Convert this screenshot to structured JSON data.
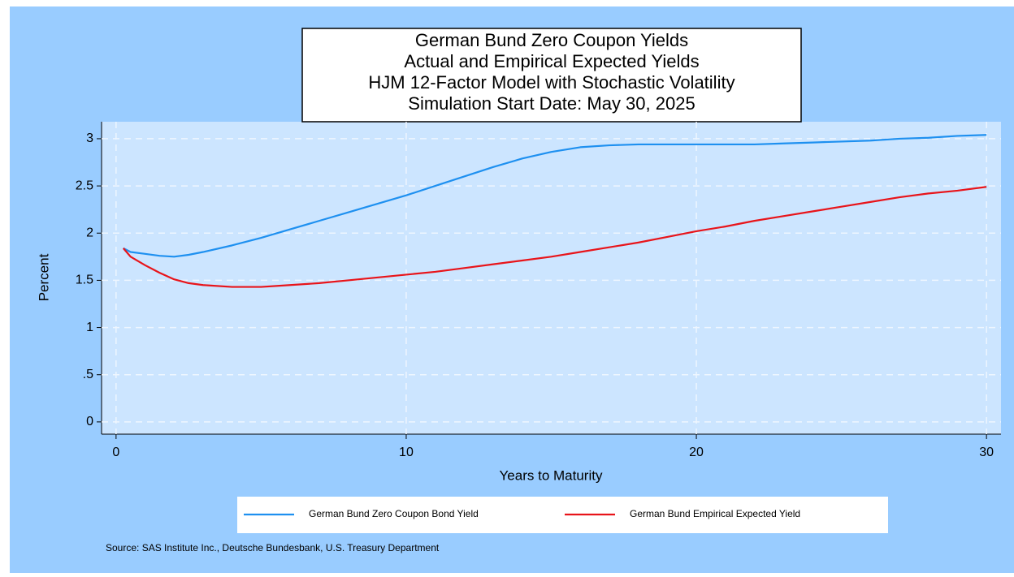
{
  "chart_data": {
    "type": "line",
    "title": [
      "German Bund Zero Coupon Yields",
      "Actual and Empirical Expected Yields",
      "HJM 12-Factor Model with Stochastic Volatility",
      "Simulation Start Date: May 30, 2025"
    ],
    "x_label": "Years to Maturity",
    "y_label": "Percent",
    "source": "Source: SAS Institute Inc., Deutsche Bundesbank, U.S. Treasury Department",
    "x": [
      0.25,
      0.5,
      1,
      1.5,
      2,
      2.5,
      3,
      4,
      5,
      6,
      7,
      8,
      9,
      10,
      11,
      12,
      13,
      14,
      15,
      16,
      17,
      18,
      19,
      20,
      21,
      22,
      23,
      24,
      25,
      26,
      27,
      28,
      29,
      30
    ],
    "series": [
      {
        "name": "German Bund Zero Coupon Bond Yield",
        "color": "#1e90f0",
        "values": [
          1.84,
          1.8,
          1.78,
          1.76,
          1.75,
          1.77,
          1.8,
          1.87,
          1.95,
          2.04,
          2.13,
          2.22,
          2.31,
          2.4,
          2.5,
          2.6,
          2.7,
          2.79,
          2.86,
          2.91,
          2.93,
          2.94,
          2.94,
          2.94,
          2.94,
          2.94,
          2.95,
          2.96,
          2.97,
          2.98,
          3.0,
          3.01,
          3.03,
          3.04
        ]
      },
      {
        "name": "German Bund Empirical Expected Yield",
        "color": "#e8141a",
        "values": [
          1.84,
          1.75,
          1.66,
          1.58,
          1.51,
          1.47,
          1.45,
          1.43,
          1.43,
          1.45,
          1.47,
          1.5,
          1.53,
          1.56,
          1.59,
          1.63,
          1.67,
          1.71,
          1.75,
          1.8,
          1.85,
          1.9,
          1.96,
          2.02,
          2.07,
          2.13,
          2.18,
          2.23,
          2.28,
          2.33,
          2.38,
          2.42,
          2.45,
          2.49
        ]
      }
    ],
    "xlim": [
      -0.5,
      30.5
    ],
    "xticks": [
      0,
      10,
      20,
      30
    ],
    "ylim": [
      -0.13,
      3.18
    ],
    "yticks": [
      0,
      {
        "value": 0.5,
        "label": ".5"
      },
      1,
      1.5,
      2,
      2.5,
      3
    ],
    "grid": true
  }
}
